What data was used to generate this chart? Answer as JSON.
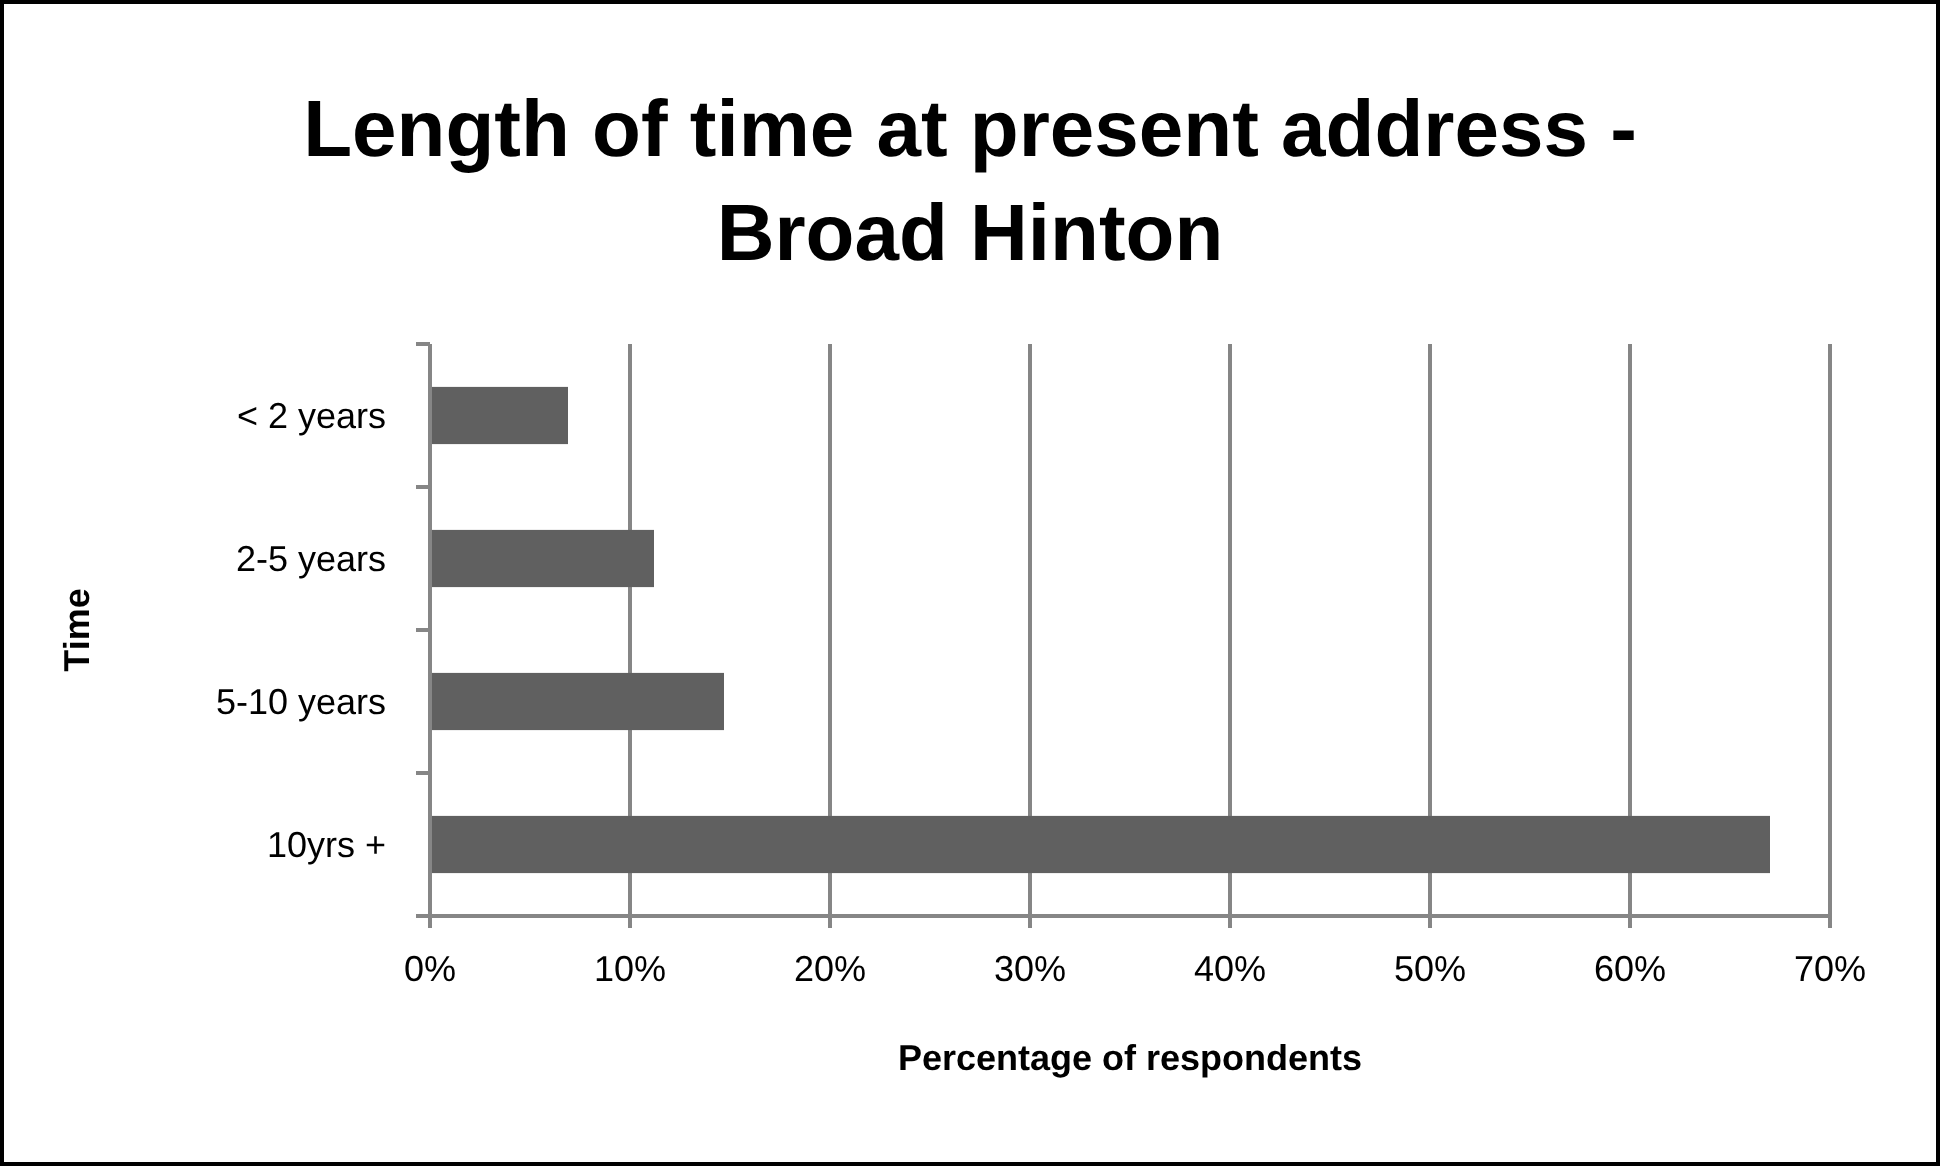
{
  "chart_data": {
    "type": "bar",
    "orientation": "horizontal",
    "title": "Length of time at present address - Broad Hinton",
    "xlabel": "Percentage of respondents",
    "ylabel": "Time",
    "categories": [
      "< 2 years",
      "2-5 years",
      "5-10 years",
      "10yrs +"
    ],
    "values": [
      6.9,
      11.2,
      14.7,
      67
    ],
    "color": "#606060",
    "xlim": [
      0,
      70
    ],
    "xticks": [
      {
        "value": 0,
        "label": "0%"
      },
      {
        "value": 10,
        "label": "10%"
      },
      {
        "value": 20,
        "label": "20%"
      },
      {
        "value": 30,
        "label": "30%"
      },
      {
        "value": 40,
        "label": "40%"
      },
      {
        "value": 50,
        "label": "50%"
      },
      {
        "value": 60,
        "label": "60%"
      },
      {
        "value": 70,
        "label": "70%"
      }
    ],
    "grid": "x"
  }
}
